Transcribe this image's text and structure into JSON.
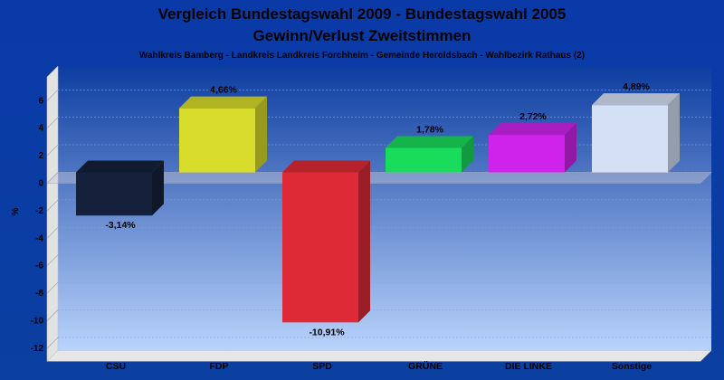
{
  "chart_data": {
    "type": "bar",
    "title": "Vergleich Bundestagswahl 2009 - Bundestagswahl 2005",
    "title2": "Gewinn/Verlust Zweitstimmen",
    "subtitle": "Wahlkreis Bamberg - Landkreis Landkreis Forchheim - Gemeinde Heroldsbach - Wahlbezirk Rathaus (2)",
    "ylabel": "%",
    "xlabel": "",
    "ylim": [
      -13,
      7.5
    ],
    "yticks": [
      "6",
      "4",
      "2",
      "0",
      "-2",
      "-4",
      "-6",
      "-8",
      "-10",
      "-12"
    ],
    "categories": [
      "CSU",
      "FDP",
      "SPD",
      "GRÜNE",
      "DIE LINKE",
      "Sonstige"
    ],
    "values": [
      -3.14,
      4.66,
      -10.91,
      1.78,
      2.72,
      4.89
    ],
    "value_labels": [
      "-3,14%",
      "4,66%",
      "-10,91%",
      "1,78%",
      "2,72%",
      "4,89%"
    ],
    "colors": [
      "#15213a",
      "#d8dc2a",
      "#dd2a36",
      "#19dc5c",
      "#cf23ec",
      "#d4e0f4"
    ],
    "grid": true,
    "legend": "none"
  }
}
